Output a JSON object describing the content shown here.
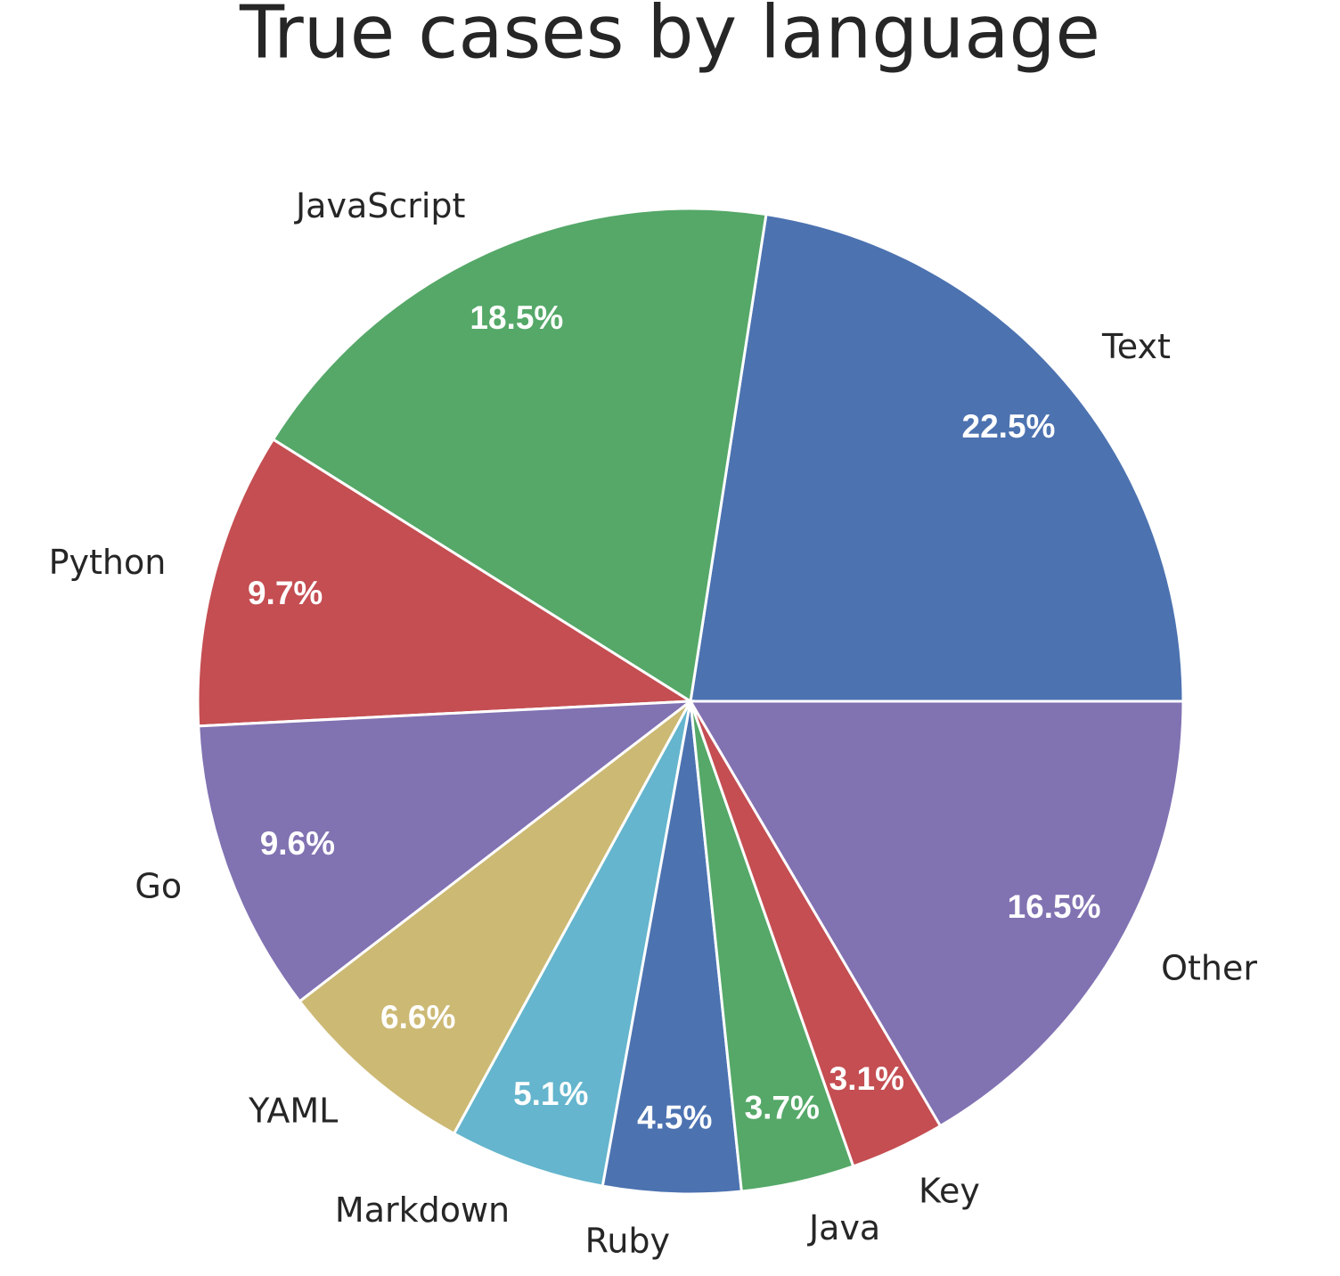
{
  "chart_data": {
    "type": "pie",
    "title": "True cases by language",
    "categories": [
      "Text",
      "JavaScript",
      "Python",
      "Go",
      "YAML",
      "Markdown",
      "Ruby",
      "Java",
      "Key",
      "Other"
    ],
    "values": [
      22.5,
      18.5,
      9.7,
      9.6,
      6.6,
      5.1,
      4.5,
      3.7,
      3.1,
      16.5
    ],
    "value_labels": [
      "22.5%",
      "18.5%",
      "9.7%",
      "9.6%",
      "6.6%",
      "5.1%",
      "4.5%",
      "3.7%",
      "3.1%",
      "16.5%"
    ],
    "colors": [
      "#4c72b0",
      "#55a868",
      "#c44e52",
      "#8172b2",
      "#ccb974",
      "#64b5cd",
      "#4c72b0",
      "#55a868",
      "#c44e52",
      "#8172b2"
    ]
  }
}
